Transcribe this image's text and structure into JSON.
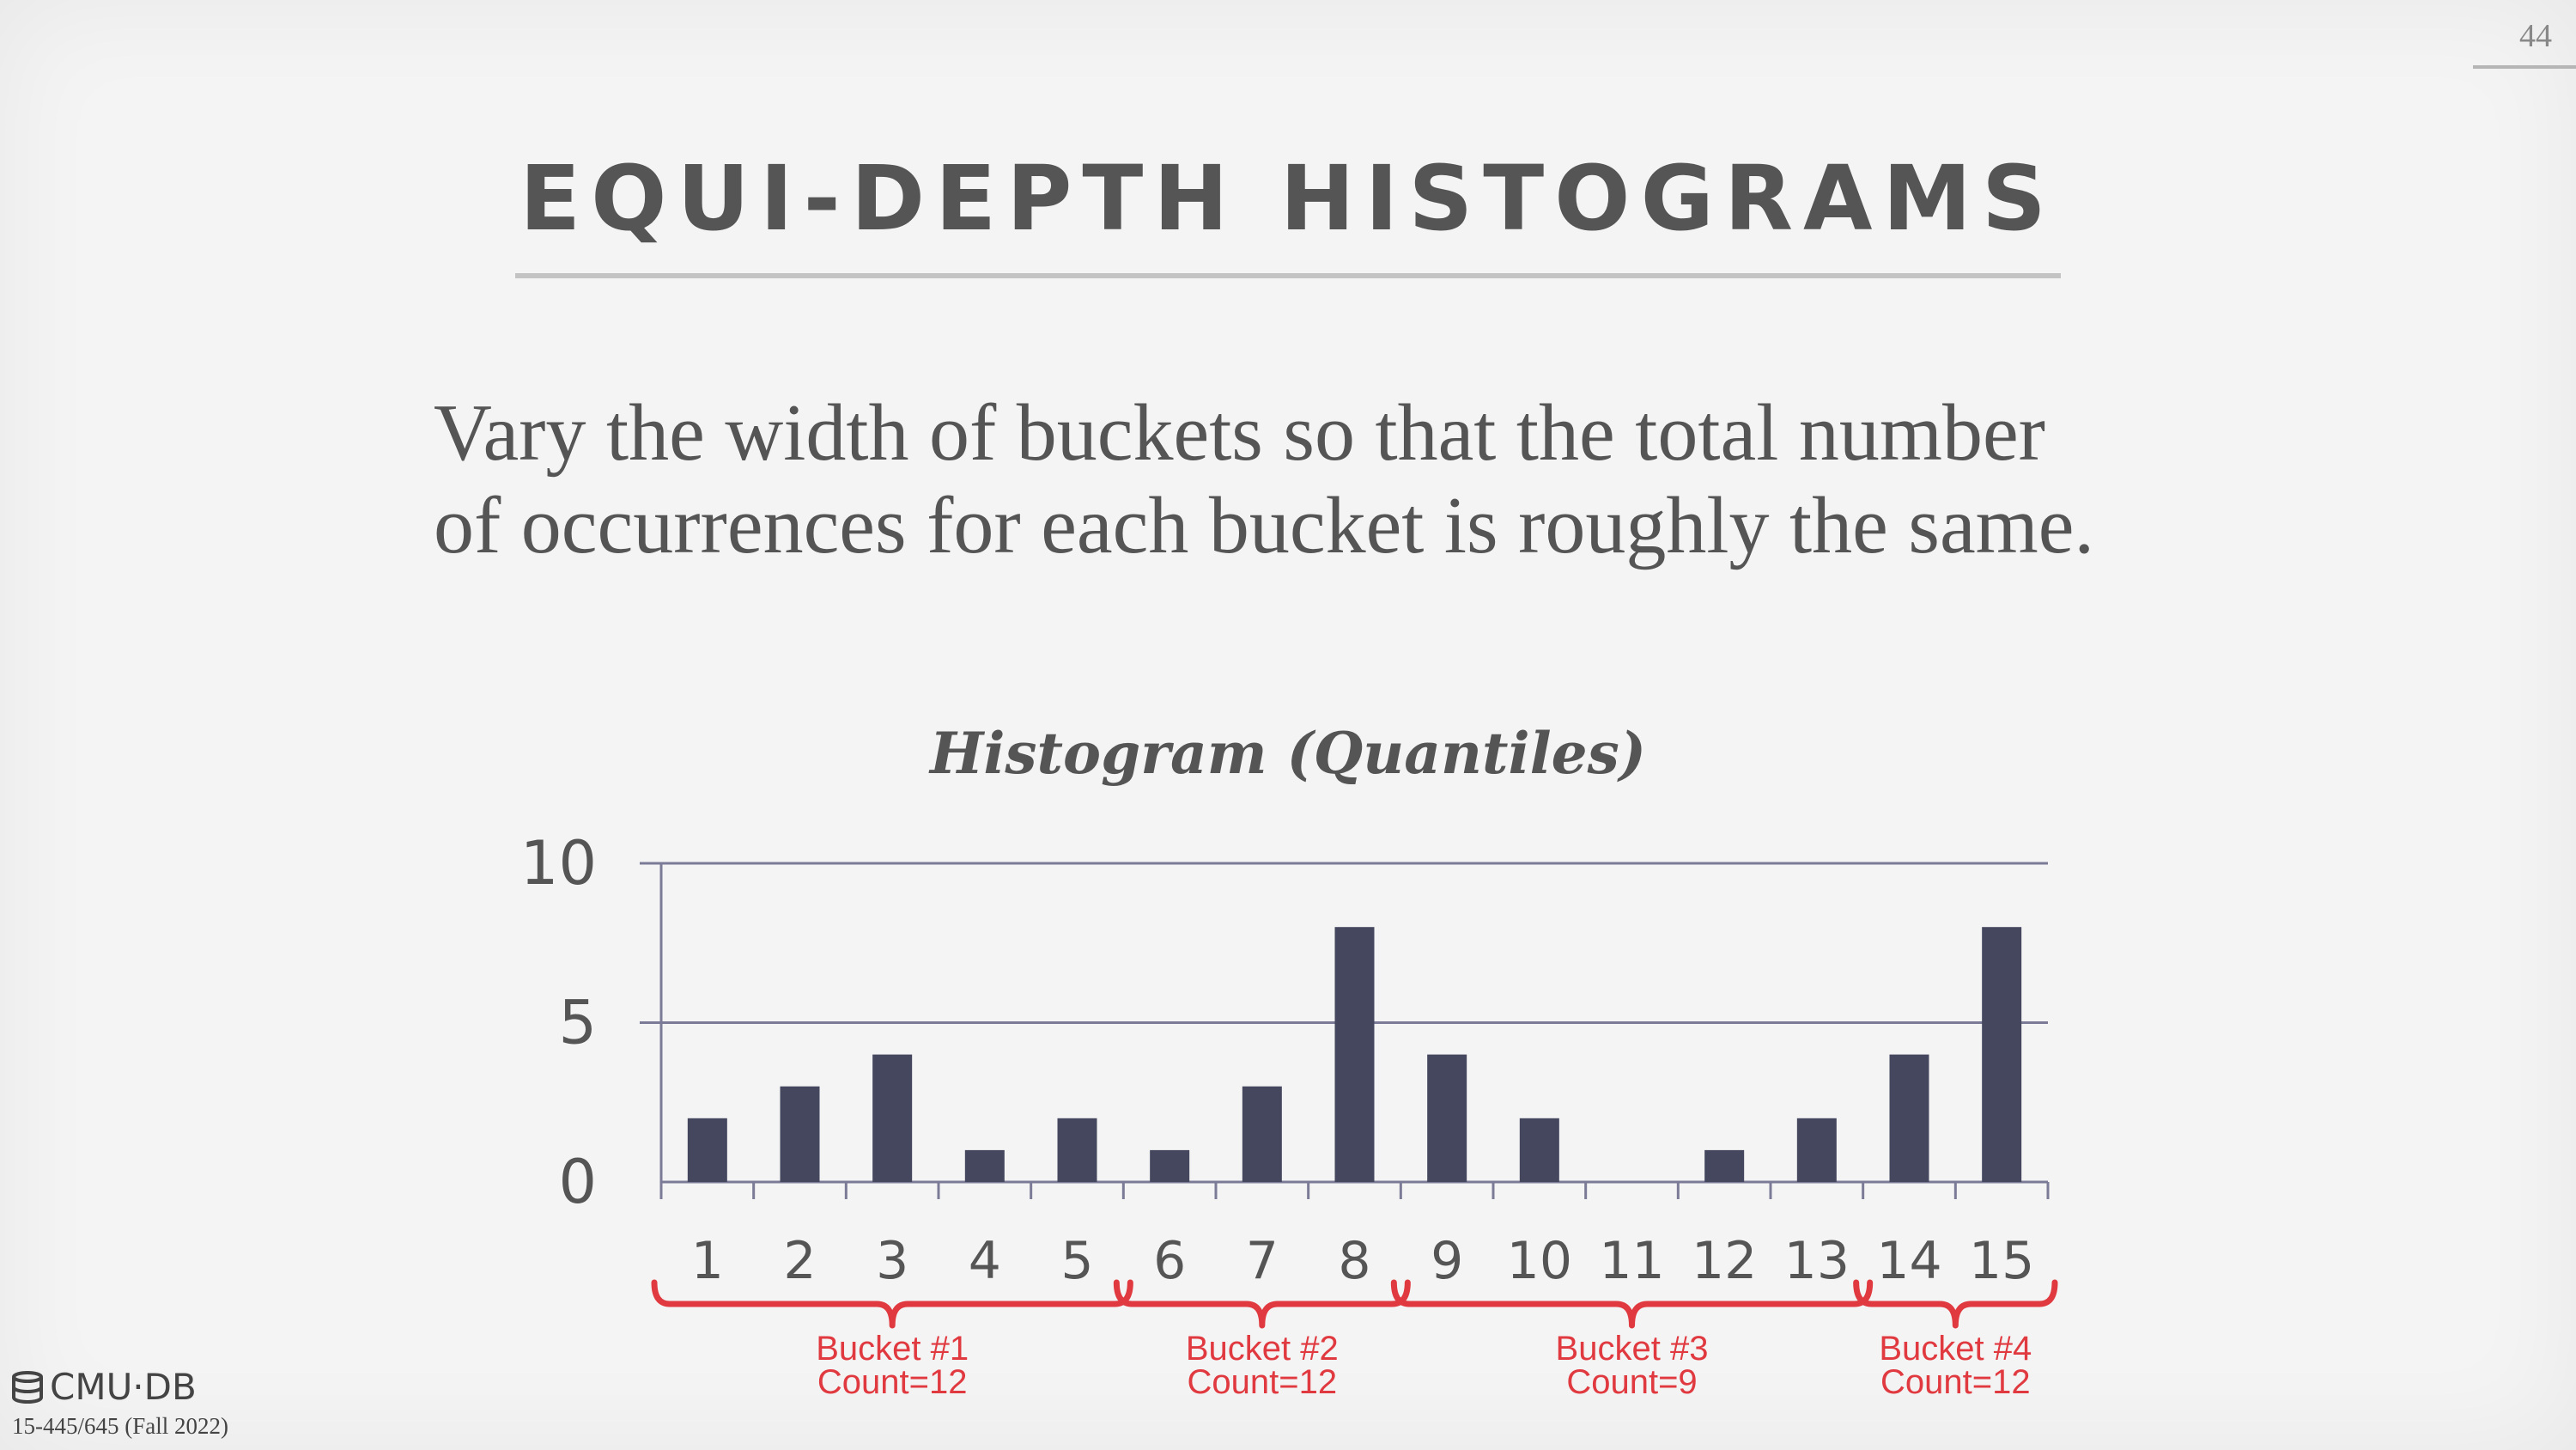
{
  "page_number": "44",
  "title": "EQUI-DEPTH HISTOGRAMS",
  "body_lines": [
    "Vary the width of buckets so that the total number",
    "of occurrences for each bucket is roughly the same."
  ],
  "chart_data": {
    "type": "bar",
    "title": "Histogram (Quantiles)",
    "xlabel": "",
    "ylabel": "",
    "categories": [
      "1",
      "2",
      "3",
      "4",
      "5",
      "6",
      "7",
      "8",
      "9",
      "10",
      "11",
      "12",
      "13",
      "14",
      "15"
    ],
    "values": [
      2,
      3,
      4,
      1,
      2,
      1,
      3,
      8,
      4,
      2,
      0,
      1,
      2,
      4,
      8
    ],
    "ylim": [
      0,
      10
    ],
    "yticks": [
      "0",
      "5",
      "10"
    ],
    "grid": true,
    "bar_color": "#45475f",
    "buckets": [
      {
        "label": "Bucket #1",
        "count": "Count=12",
        "first": 1,
        "last": 5
      },
      {
        "label": "Bucket #2",
        "count": "Count=12",
        "first": 6,
        "last": 8
      },
      {
        "label": "Bucket #3",
        "count": "Count=9",
        "first": 9,
        "last": 13
      },
      {
        "label": "Bucket #4",
        "count": "Count=12",
        "first": 14,
        "last": 15
      }
    ],
    "bucket_color": "#e0393f"
  },
  "footer": {
    "logo_text": "CMU·DB",
    "course": "15-445/645 (Fall 2022)"
  }
}
